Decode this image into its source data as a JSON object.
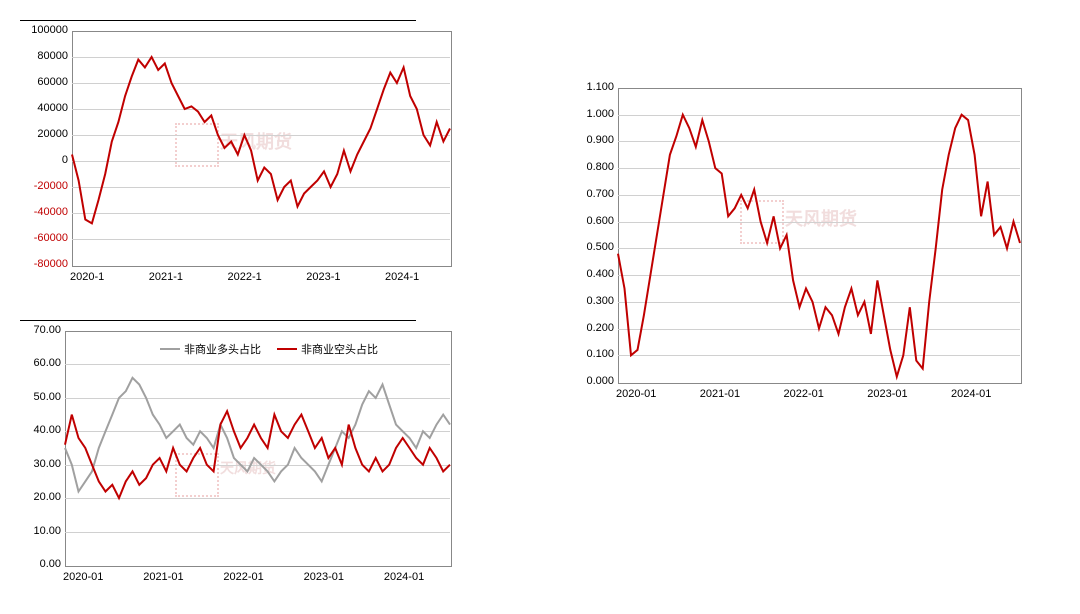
{
  "watermark_text": "天风期货",
  "chart1": {
    "type": "line",
    "title_fontsize": 11,
    "label_fontsize": 11,
    "background_color": "#ffffff",
    "grid_color": "#d0d0d0",
    "axis_color": "#888888",
    "line_color": "#c00000",
    "line_width": 2,
    "ylim": [
      -80000,
      100000
    ],
    "ytick_step": 20000,
    "yticks": [
      -80000,
      -60000,
      -40000,
      -20000,
      0,
      20000,
      40000,
      60000,
      80000,
      100000
    ],
    "xticks": [
      "2020-1",
      "2021-1",
      "2022-1",
      "2023-1",
      "2024-1"
    ],
    "neg_label_color": "#c00000",
    "values": [
      5000,
      -15000,
      -45000,
      -48000,
      -30000,
      -10000,
      15000,
      30000,
      50000,
      65000,
      78000,
      72000,
      80000,
      70000,
      75000,
      60000,
      50000,
      40000,
      42000,
      38000,
      30000,
      35000,
      20000,
      10000,
      15000,
      5000,
      20000,
      8000,
      -15000,
      -5000,
      -10000,
      -30000,
      -20000,
      -15000,
      -35000,
      -25000,
      -20000,
      -15000,
      -8000,
      -20000,
      -10000,
      8000,
      -8000,
      5000,
      15000,
      25000,
      40000,
      55000,
      68000,
      60000,
      72000,
      50000,
      40000,
      20000,
      12000,
      30000,
      15000,
      25000
    ]
  },
  "chart2": {
    "type": "line",
    "title_fontsize": 11,
    "label_fontsize": 11,
    "background_color": "#ffffff",
    "grid_color": "#d0d0d0",
    "axis_color": "#888888",
    "line_width": 2,
    "ylim": [
      0,
      70
    ],
    "ytick_step": 10,
    "yticks": [
      "0.00",
      "10.00",
      "20.00",
      "30.00",
      "40.00",
      "50.00",
      "60.00",
      "70.00"
    ],
    "xticks": [
      "2020-01",
      "2021-01",
      "2022-01",
      "2023-01",
      "2024-01"
    ],
    "legend": [
      {
        "label": "非商业多头占比",
        "color": "#a0a0a0"
      },
      {
        "label": "非商业空头占比",
        "color": "#c00000"
      }
    ],
    "series1_color": "#a0a0a0",
    "series2_color": "#c00000",
    "series1": [
      35,
      30,
      22,
      25,
      28,
      35,
      40,
      45,
      50,
      52,
      56,
      54,
      50,
      45,
      42,
      38,
      40,
      42,
      38,
      36,
      40,
      38,
      35,
      42,
      38,
      32,
      30,
      28,
      32,
      30,
      28,
      25,
      28,
      30,
      35,
      32,
      30,
      28,
      25,
      30,
      35,
      40,
      38,
      42,
      48,
      52,
      50,
      54,
      48,
      42,
      40,
      38,
      35,
      40,
      38,
      42,
      45,
      42
    ],
    "series2": [
      36,
      45,
      38,
      35,
      30,
      25,
      22,
      24,
      20,
      25,
      28,
      24,
      26,
      30,
      32,
      28,
      35,
      30,
      28,
      32,
      35,
      30,
      28,
      42,
      46,
      40,
      35,
      38,
      42,
      38,
      35,
      45,
      40,
      38,
      42,
      45,
      40,
      35,
      38,
      32,
      35,
      30,
      42,
      35,
      30,
      28,
      32,
      28,
      30,
      35,
      38,
      35,
      32,
      30,
      35,
      32,
      28,
      30
    ]
  },
  "chart3": {
    "type": "line",
    "title_fontsize": 11,
    "label_fontsize": 11,
    "background_color": "#ffffff",
    "grid_color": "#d0d0d0",
    "axis_color": "#888888",
    "line_color": "#c00000",
    "line_width": 2,
    "ylim": [
      0,
      1.1
    ],
    "ytick_step": 0.1,
    "yticks": [
      "0.000",
      "0.100",
      "0.200",
      "0.300",
      "0.400",
      "0.500",
      "0.600",
      "0.700",
      "0.800",
      "0.900",
      "1.000",
      "1.100"
    ],
    "xticks": [
      "2020-01",
      "2021-01",
      "2022-01",
      "2023-01",
      "2024-01"
    ],
    "values": [
      0.48,
      0.35,
      0.1,
      0.12,
      0.25,
      0.4,
      0.55,
      0.7,
      0.85,
      0.92,
      1.0,
      0.95,
      0.88,
      0.98,
      0.9,
      0.8,
      0.78,
      0.62,
      0.65,
      0.7,
      0.65,
      0.72,
      0.6,
      0.52,
      0.62,
      0.5,
      0.55,
      0.38,
      0.28,
      0.35,
      0.3,
      0.2,
      0.28,
      0.25,
      0.18,
      0.28,
      0.35,
      0.25,
      0.3,
      0.18,
      0.38,
      0.25,
      0.12,
      0.02,
      0.1,
      0.28,
      0.08,
      0.05,
      0.3,
      0.5,
      0.72,
      0.85,
      0.95,
      1.0,
      0.98,
      0.85,
      0.62,
      0.75,
      0.55,
      0.58,
      0.5,
      0.6,
      0.52
    ]
  }
}
